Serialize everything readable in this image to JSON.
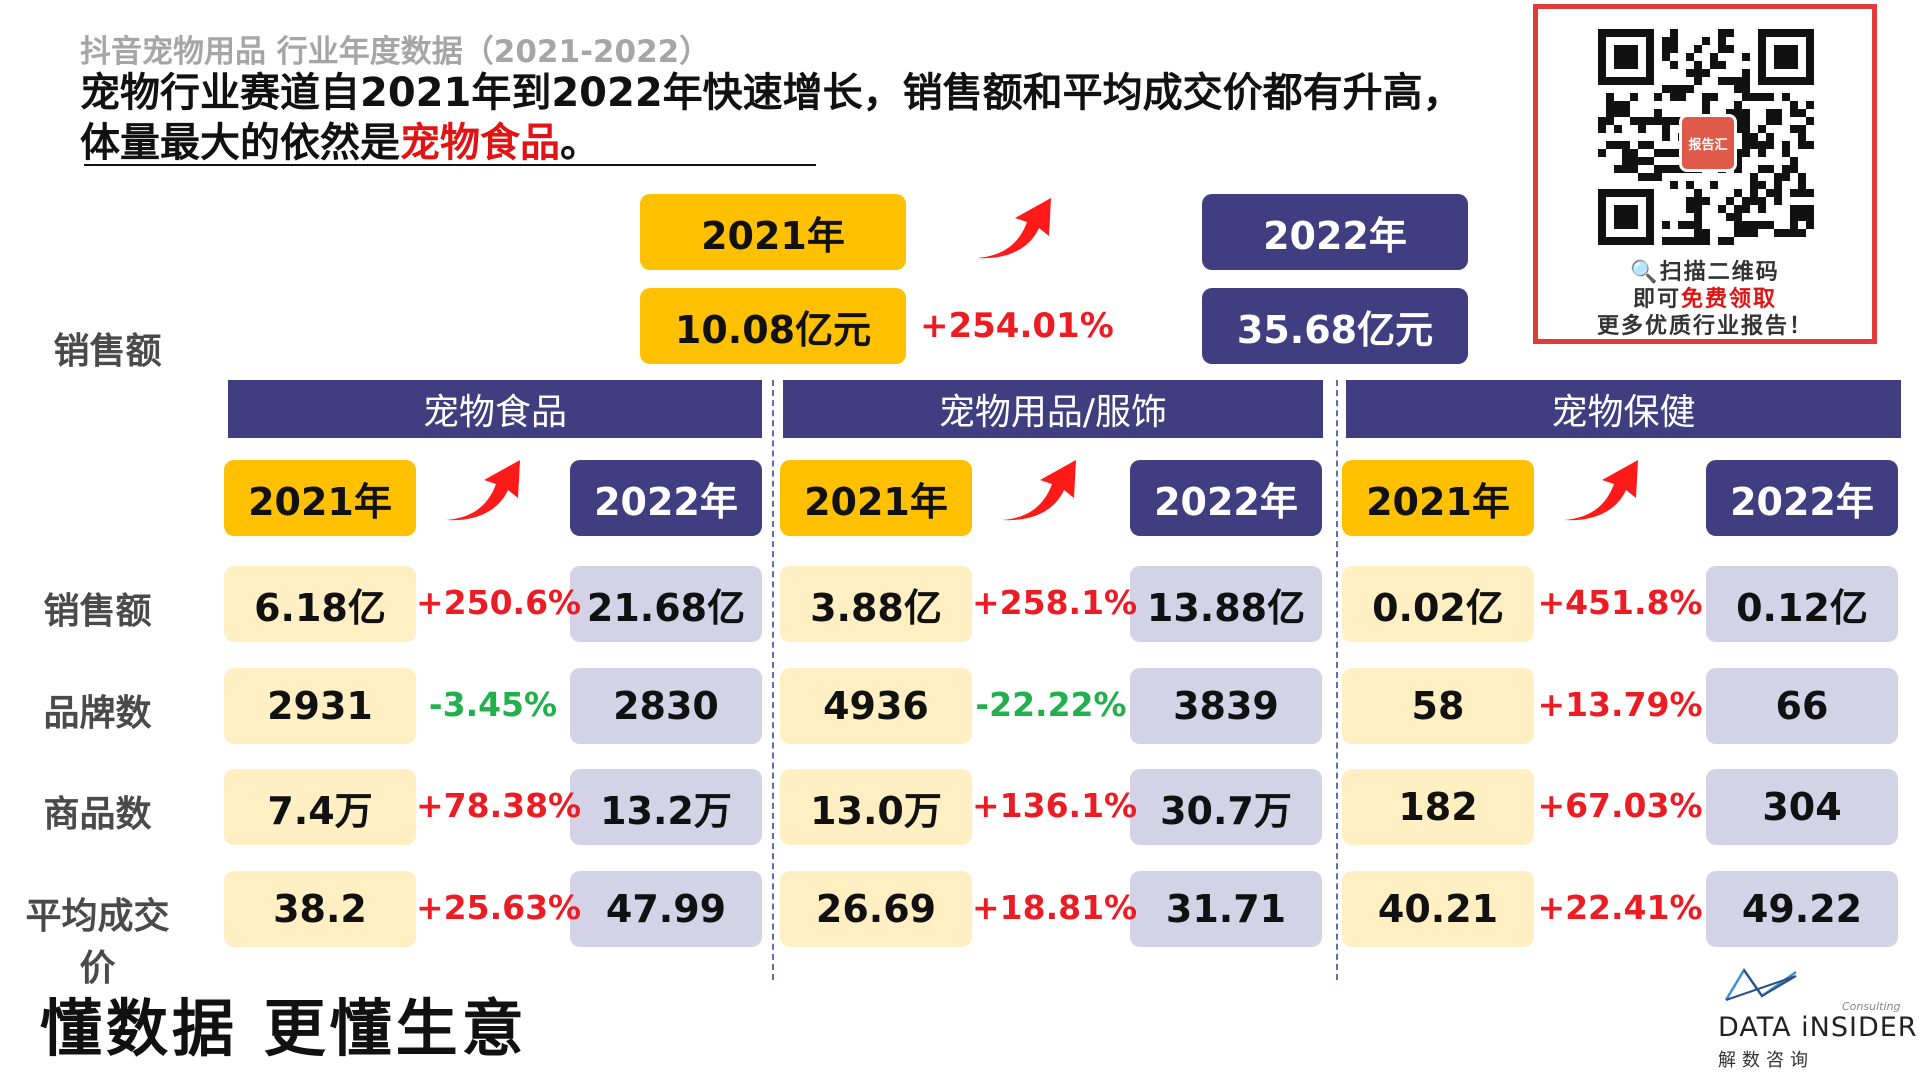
{
  "header": {
    "subtitle": "抖音宠物用品 行业年度数据（2021-2022）",
    "headline_line1": "宠物行业赛道自2021年到2022年快速增长，销售额和平均成交价都有升高，",
    "headline_line2_pre": "体量最大的依然是",
    "headline_line2_highlight": "宠物食品",
    "headline_line2_post": "。"
  },
  "overall": {
    "row_label": "销售额",
    "year_2021": "2021年",
    "year_2022": "2022年",
    "value_2021": "10.08亿元",
    "value_2022": "35.68亿元",
    "growth": "+254.01%"
  },
  "row_labels": [
    "销售额",
    "品牌数",
    "商品数",
    "平均成交价"
  ],
  "categories": [
    {
      "name": "宠物食品",
      "year_2021": "2021年",
      "year_2022": "2022年",
      "rows": [
        {
          "v2021": "6.18亿",
          "growth": "+250.6%",
          "v2022": "21.68亿",
          "trend": "up"
        },
        {
          "v2021": "2931",
          "growth": "-3.45%",
          "v2022": "2830",
          "trend": "down"
        },
        {
          "v2021": "7.4万",
          "growth": "+78.38%",
          "v2022": "13.2万",
          "trend": "up"
        },
        {
          "v2021": "38.2",
          "growth": "+25.63%",
          "v2022": "47.99",
          "trend": "up"
        }
      ]
    },
    {
      "name": "宠物用品/服饰",
      "year_2021": "2021年",
      "year_2022": "2022年",
      "rows": [
        {
          "v2021": "3.88亿",
          "growth": "+258.1%",
          "v2022": "13.88亿",
          "trend": "up"
        },
        {
          "v2021": "4936",
          "growth": "-22.22%",
          "v2022": "3839",
          "trend": "down"
        },
        {
          "v2021": "13.0万",
          "growth": "+136.1%",
          "v2022": "30.7万",
          "trend": "up"
        },
        {
          "v2021": "26.69",
          "growth": "+18.81%",
          "v2022": "31.71",
          "trend": "up"
        }
      ]
    },
    {
      "name": "宠物保健",
      "year_2021": "2021年",
      "year_2022": "2022年",
      "rows": [
        {
          "v2021": "0.02亿",
          "growth": "+451.8%",
          "v2022": "0.12亿",
          "trend": "up"
        },
        {
          "v2021": "58",
          "growth": "+13.79%",
          "v2022": "66",
          "trend": "up"
        },
        {
          "v2021": "182",
          "growth": "+67.03%",
          "v2022": "304",
          "trend": "up"
        },
        {
          "v2021": "40.21",
          "growth": "+22.41%",
          "v2022": "49.22",
          "trend": "up"
        }
      ]
    }
  ],
  "qr": {
    "line1": "🔍扫描二维码",
    "line2_pre": "即可",
    "line2_highlight": "免费领取",
    "line3": "更多优质行业报告！",
    "badge": "报告汇",
    "qr_icon": "qr-code-icon"
  },
  "footer": {
    "slogan": "懂数据 更懂生意",
    "logo_name": "DATA iNSIDER",
    "logo_cn": "解数咨询",
    "logo_consulting": "Consulting"
  },
  "colors": {
    "yellow": "#ffc000",
    "navy": "#403e80",
    "light_yellow": "#ffefc3",
    "light_purple": "#d3d2e6",
    "red": "#ec1c24",
    "green": "#22b04c"
  }
}
